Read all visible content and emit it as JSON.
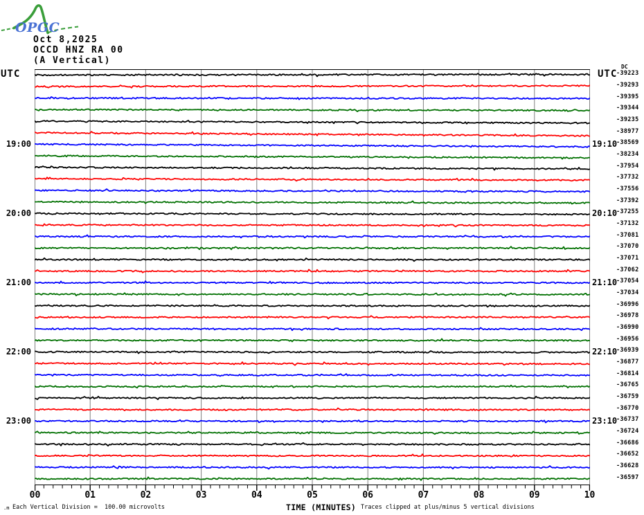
{
  "logo": {
    "text": "OPGC",
    "text_color": "#4a72d4",
    "curve_color": "#3a9e3a"
  },
  "header": {
    "date": "Oct 8,2025",
    "station": "OCCD HNZ RA 00",
    "component": "(A Vertical)"
  },
  "axis": {
    "left_utc": "UTC",
    "right_utc": "UTC",
    "dc_label": "DC",
    "x_title": "TIME (MINUTES)",
    "x_ticks": [
      "00",
      "01",
      "02",
      "03",
      "04",
      "05",
      "06",
      "07",
      "08",
      "09",
      "10"
    ]
  },
  "footer": {
    "corner_mark": ".m",
    "scale_note": "Each Vertical Division =  100.00 microvolts",
    "clip_note": "Traces clipped at plus/minus 5 vertical divisions"
  },
  "chart_data": {
    "type": "line",
    "subtype": "helicorder-seismogram",
    "title": "OCCD HNZ RA 00 (A Vertical) — Oct 8,2025",
    "xlabel": "TIME (MINUTES)",
    "x_range_minutes": [
      0,
      10
    ],
    "minutes_per_trace": 10,
    "minor_ticks_per_minute": 6,
    "grid": true,
    "grid_color": "#808080",
    "colors_cycle": [
      "#000000",
      "#ff0000",
      "#0000ff",
      "#007000"
    ],
    "vertical_division_microvolts": 100.0,
    "clip_divisions": 5,
    "traces": [
      {
        "dc": -39223
      },
      {
        "dc": -39293
      },
      {
        "dc": -39395
      },
      {
        "dc": -39344
      },
      {
        "dc": -39235
      },
      {
        "dc": -38977
      },
      {
        "dc": -38569,
        "left": "19:00",
        "right": "19:10"
      },
      {
        "dc": -38234
      },
      {
        "dc": -37954
      },
      {
        "dc": -37732
      },
      {
        "dc": -37556
      },
      {
        "dc": -37392
      },
      {
        "dc": -37255,
        "left": "20:00",
        "right": "20:10"
      },
      {
        "dc": -37132
      },
      {
        "dc": -37081
      },
      {
        "dc": -37070
      },
      {
        "dc": -37071
      },
      {
        "dc": -37062
      },
      {
        "dc": -37054,
        "left": "21:00",
        "right": "21:10"
      },
      {
        "dc": -37034
      },
      {
        "dc": -36996
      },
      {
        "dc": -36978
      },
      {
        "dc": -36990
      },
      {
        "dc": -36956
      },
      {
        "dc": -36939,
        "left": "22:00",
        "right": "22:10"
      },
      {
        "dc": -36877
      },
      {
        "dc": -36814
      },
      {
        "dc": -36765
      },
      {
        "dc": -36759
      },
      {
        "dc": -36770
      },
      {
        "dc": -36737,
        "left": "23:00",
        "right": "23:10"
      },
      {
        "dc": -36724
      },
      {
        "dc": -36686
      },
      {
        "dc": -36652
      },
      {
        "dc": -36628
      },
      {
        "dc": -36597
      }
    ]
  }
}
